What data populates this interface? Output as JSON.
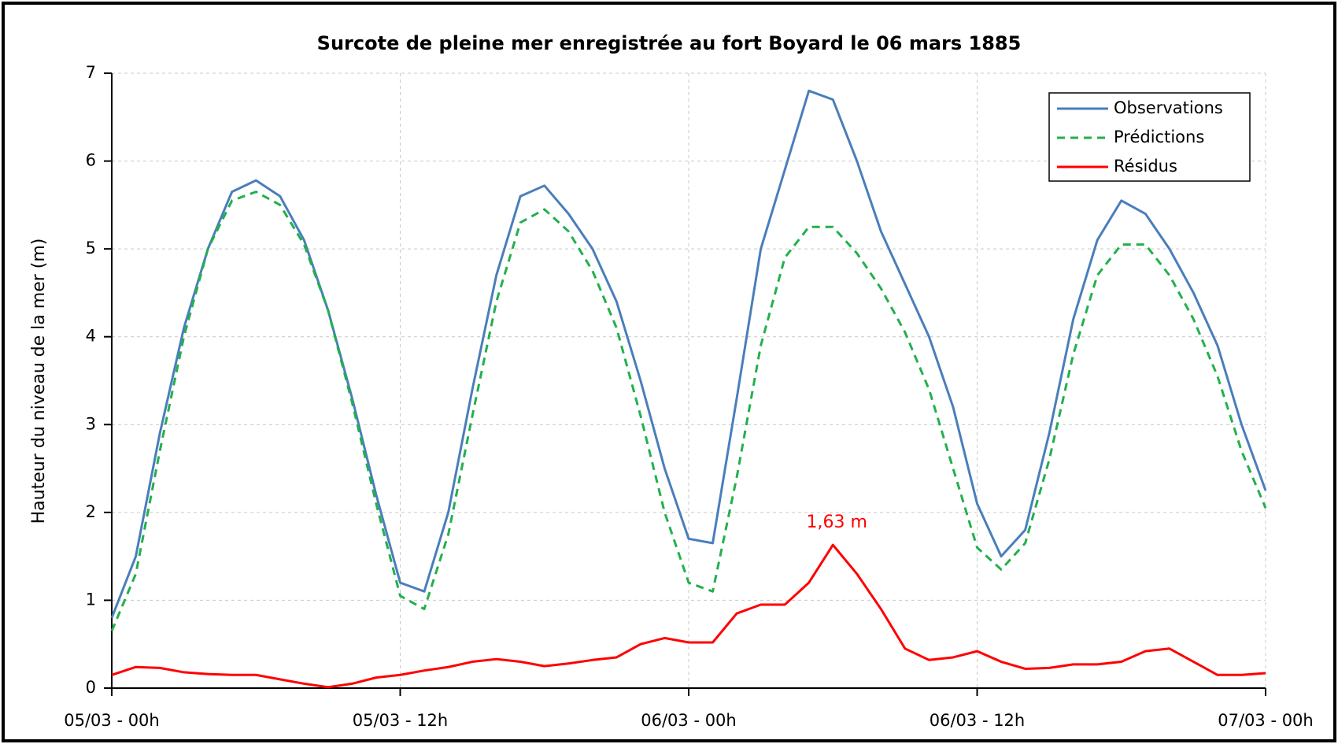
{
  "chart_data": {
    "type": "line",
    "title": "Surcote de pleine mer enregistrée au fort Boyard le 06 mars 1885",
    "y_label": "Hauteur du niveau de la mer (m)",
    "x": [
      0,
      1,
      2,
      3,
      4,
      5,
      6,
      7,
      8,
      9,
      10,
      11,
      12,
      13,
      14,
      15,
      16,
      17,
      18,
      19,
      20,
      21,
      22,
      23,
      24,
      25,
      26,
      27,
      28,
      29,
      30,
      31,
      32,
      33,
      34,
      35,
      36,
      37,
      38,
      39,
      40,
      41,
      42,
      43,
      44,
      45,
      46,
      47,
      48
    ],
    "xlim": [
      0,
      48
    ],
    "xticks": [
      {
        "value": 0,
        "label": "05/03 - 00h"
      },
      {
        "value": 12,
        "label": "05/03 - 12h"
      },
      {
        "value": 24,
        "label": "06/03 - 00h"
      },
      {
        "value": 36,
        "label": "06/03 - 12h"
      },
      {
        "value": 48,
        "label": "07/03 - 00h"
      }
    ],
    "ylim": [
      0,
      7
    ],
    "yticks": [
      0,
      1,
      2,
      3,
      4,
      5,
      6,
      7
    ],
    "grid": true,
    "legend": "upper right",
    "series": [
      {
        "name": "Observations",
        "color": "#4a7ebb",
        "dash": false,
        "values": [
          0.8,
          1.5,
          2.9,
          4.1,
          5.0,
          5.65,
          5.78,
          5.6,
          5.1,
          4.3,
          3.3,
          2.2,
          1.2,
          1.1,
          2.0,
          3.4,
          4.7,
          5.6,
          5.72,
          5.4,
          5.0,
          4.4,
          3.5,
          2.5,
          1.7,
          1.65,
          3.3,
          5.0,
          5.9,
          6.8,
          6.7,
          6.0,
          5.2,
          4.6,
          4.0,
          3.2,
          2.1,
          1.5,
          1.8,
          2.9,
          4.2,
          5.1,
          5.55,
          5.4,
          5.0,
          4.5,
          3.9,
          3.0,
          2.25
        ]
      },
      {
        "name": "Prédictions",
        "color": "#22b04c",
        "dash": true,
        "values": [
          0.65,
          1.3,
          2.7,
          4.0,
          5.0,
          5.55,
          5.65,
          5.5,
          5.05,
          4.3,
          3.25,
          2.1,
          1.05,
          0.9,
          1.75,
          3.1,
          4.4,
          5.3,
          5.45,
          5.2,
          4.75,
          4.1,
          3.1,
          2.0,
          1.2,
          1.1,
          2.4,
          3.9,
          4.9,
          5.25,
          5.25,
          4.95,
          4.55,
          4.05,
          3.4,
          2.5,
          1.6,
          1.35,
          1.65,
          2.6,
          3.8,
          4.7,
          5.05,
          5.05,
          4.7,
          4.2,
          3.55,
          2.7,
          2.05
        ]
      },
      {
        "name": "Résidus",
        "color": "#ff0000",
        "dash": false,
        "values": [
          0.15,
          0.24,
          0.23,
          0.18,
          0.16,
          0.15,
          0.15,
          0.1,
          0.05,
          0.01,
          0.05,
          0.12,
          0.15,
          0.2,
          0.24,
          0.3,
          0.33,
          0.3,
          0.25,
          0.28,
          0.32,
          0.35,
          0.5,
          0.57,
          0.52,
          0.52,
          0.85,
          0.95,
          0.95,
          1.2,
          1.63,
          1.3,
          0.9,
          0.45,
          0.32,
          0.35,
          0.42,
          0.3,
          0.22,
          0.23,
          0.27,
          0.27,
          0.3,
          0.42,
          0.45,
          0.3,
          0.15,
          0.15,
          0.17
        ]
      }
    ],
    "annotations": [
      {
        "text": "1,63 m",
        "x": 30,
        "y": 1.63,
        "color": "#ff0000"
      }
    ]
  }
}
